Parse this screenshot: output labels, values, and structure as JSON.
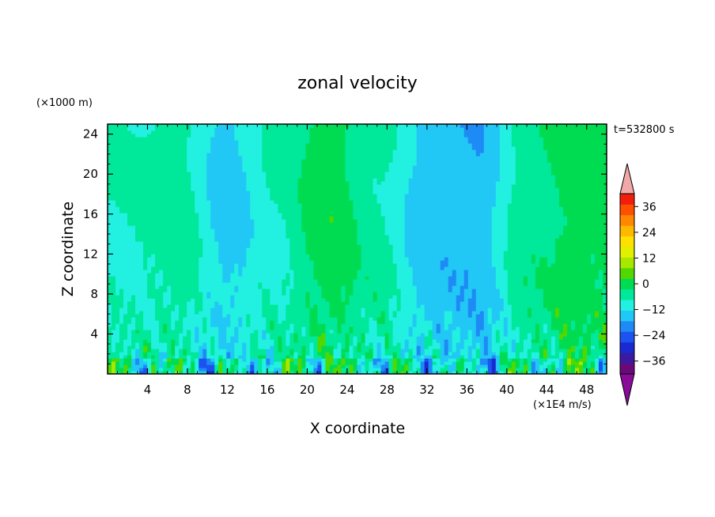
{
  "chart_data": {
    "type": "heatmap",
    "title": "zonal velocity",
    "xlabel": "X coordinate",
    "ylabel": "Z coordinate",
    "y_unit_label": "(×1000 m)",
    "time_label": "t=532800 s",
    "colorbar_unit_label": "(×1E4 m/s)",
    "xlim": [
      0,
      50
    ],
    "ylim": [
      0,
      25
    ],
    "x_ticks": [
      "4",
      "8",
      "12",
      "16",
      "20",
      "24",
      "28",
      "32",
      "36",
      "40",
      "44",
      "48"
    ],
    "y_ticks": [
      "4",
      "8",
      "12",
      "16",
      "20",
      "24"
    ],
    "colorbar": {
      "range": [
        -42,
        42
      ],
      "step": 6,
      "tick_labels": [
        "36",
        "24",
        "12",
        "0",
        "−12",
        "−24",
        "−36"
      ],
      "extend": "both",
      "colors": [
        "#6a0a7a",
        "#3a1aa0",
        "#1a2ad0",
        "#1c52f0",
        "#1e8af5",
        "#22c8f5",
        "#22f0e0",
        "#00e89a",
        "#00dc52",
        "#52d800",
        "#a8e800",
        "#e0f000",
        "#ffe000",
        "#ffb800",
        "#ff8800",
        "#ff5000",
        "#f01e0a"
      ],
      "over_color": "#f0a8a8",
      "under_color": "#8a0a9a"
    },
    "field_note_values": {
      "upper_band_alternating_x": [
        2,
        7,
        12,
        17,
        22,
        27,
        32,
        37,
        42,
        47
      ],
      "upper_band_values": [
        0,
        3,
        -8,
        0,
        10,
        2,
        -9,
        -11,
        4,
        9
      ]
    }
  }
}
